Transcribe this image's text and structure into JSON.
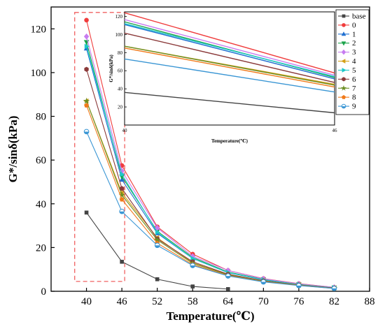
{
  "chart_data": {
    "type": "line",
    "xlabel": "Temperature(℃)",
    "ylabel": "G*/sinδ(kPa)",
    "xlim": [
      34,
      88
    ],
    "ylim": [
      0,
      130
    ],
    "x_ticks": [
      40,
      46,
      52,
      58,
      64,
      70,
      76,
      82,
      88
    ],
    "y_ticks": [
      0,
      20,
      40,
      60,
      80,
      100,
      120
    ],
    "x": [
      40,
      46,
      52,
      58,
      64,
      70,
      76,
      82
    ],
    "legend_position": "top-right",
    "highlight_box_x": [
      38,
      46
    ],
    "series": [
      {
        "name": "base",
        "color": "#444444",
        "marker": "square",
        "values": [
          36,
          13.5,
          5.5,
          2.2,
          1.0,
          null,
          null,
          null
        ]
      },
      {
        "name": "0",
        "color": "#f03c3c",
        "marker": "circle",
        "values": [
          124,
          57.5,
          29.5,
          17,
          9.5,
          5.8,
          3.5,
          1.8
        ]
      },
      {
        "name": "1",
        "color": "#1f6fd1",
        "marker": "tri-up",
        "values": [
          111,
          51,
          26.5,
          15,
          8.5,
          5.2,
          3.1,
          1.6
        ]
      },
      {
        "name": "2",
        "color": "#1aa34a",
        "marker": "tri-down",
        "values": [
          114,
          52.5,
          27.5,
          15.5,
          8.8,
          5.4,
          3.2,
          1.7
        ]
      },
      {
        "name": "3",
        "color": "#c77cf0",
        "marker": "diamond",
        "values": [
          116.5,
          55,
          29,
          16,
          9.5,
          5.7,
          3.4,
          1.8
        ]
      },
      {
        "name": "4",
        "color": "#d4a017",
        "marker": "tri-left",
        "values": [
          87,
          45,
          24.5,
          13,
          7.6,
          4.7,
          2.8,
          1.4
        ]
      },
      {
        "name": "5",
        "color": "#1ec8c8",
        "marker": "tri-right",
        "values": [
          112,
          53.5,
          27,
          15,
          8.6,
          5.3,
          3.1,
          1.6
        ]
      },
      {
        "name": "6",
        "color": "#8b3a3a",
        "marker": "hexagon",
        "values": [
          101.5,
          47,
          24,
          13.5,
          7.8,
          4.8,
          2.9,
          1.5
        ]
      },
      {
        "name": "7",
        "color": "#6b8e23",
        "marker": "star",
        "values": [
          87,
          44,
          23.5,
          12.8,
          7.5,
          4.6,
          2.8,
          1.4
        ]
      },
      {
        "name": "8",
        "color": "#f07a1a",
        "marker": "pentagon",
        "values": [
          85,
          42,
          22,
          12.2,
          7.2,
          4.4,
          2.7,
          1.3
        ]
      },
      {
        "name": "9",
        "color": "#3a96d4",
        "marker": "half",
        "values": [
          73,
          36.5,
          21,
          11.8,
          7.0,
          4.3,
          2.6,
          1.3
        ]
      }
    ],
    "inset": {
      "xlabel": "Temperature(℃)",
      "ylabel": "G*/sinδ(kPa)",
      "xlim": [
        40,
        46
      ],
      "ylim": [
        0,
        125
      ],
      "x_ticks": [
        40,
        46
      ],
      "y_ticks": [
        20,
        40,
        60,
        80,
        100,
        120
      ]
    }
  }
}
